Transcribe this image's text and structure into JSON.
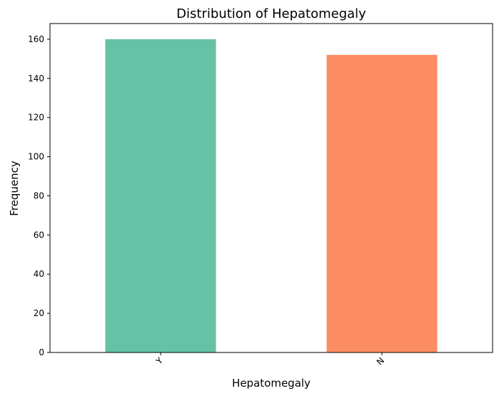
{
  "chart_data": {
    "type": "bar",
    "title": "Distribution of Hepatomegaly",
    "xlabel": "Hepatomegaly",
    "ylabel": "Frequency",
    "categories": [
      "Y",
      "N"
    ],
    "values": [
      160,
      152
    ],
    "colors": [
      "#66c2a5",
      "#fc8d62"
    ],
    "ylim": [
      0,
      168
    ],
    "yticks": [
      0,
      20,
      40,
      60,
      80,
      100,
      120,
      140,
      160
    ],
    "xtick_rotation": "45 degrees",
    "grid": false,
    "legend": "none"
  }
}
